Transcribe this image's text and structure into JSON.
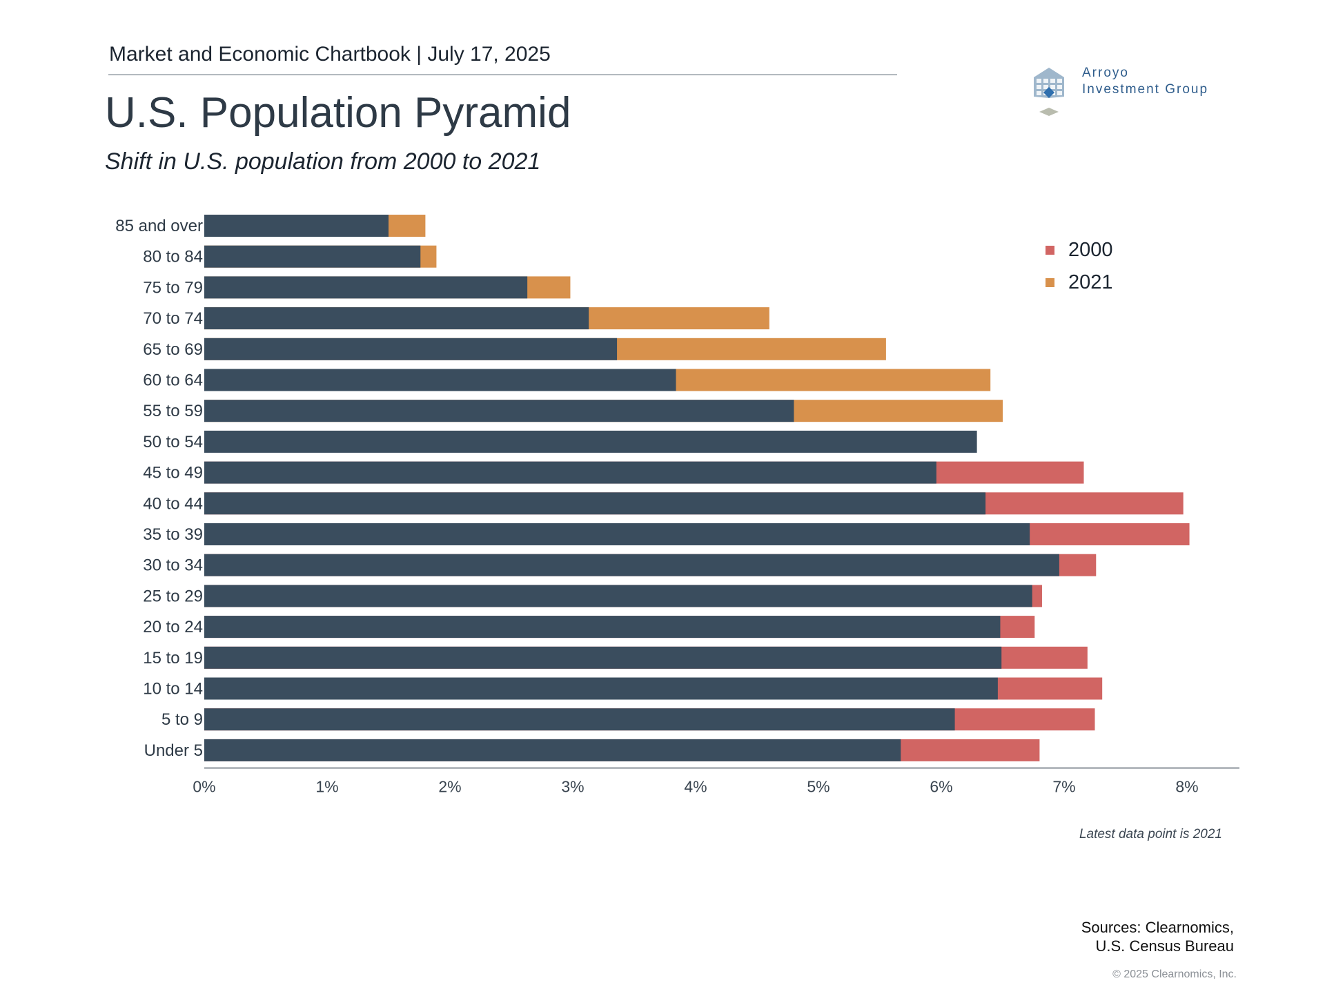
{
  "header": {
    "kicker": "Market and Economic Chartbook | July 17, 2025",
    "title": "U.S. Population Pyramid",
    "subtitle": "Shift in U.S. population from 2000 to 2021"
  },
  "logo": {
    "line1": "Arroyo",
    "line2": "Investment Group",
    "icon": "building-grid-icon",
    "color": "#2f5d8c"
  },
  "chart_data": {
    "type": "bar",
    "orientation": "horizontal",
    "categories": [
      "85 and over",
      "80 to 84",
      "75 to 79",
      "70 to 74",
      "65 to 69",
      "60 to 64",
      "55 to 59",
      "50 to 54",
      "45 to 49",
      "40 to 44",
      "35 to 39",
      "30 to 34",
      "25 to 29",
      "20 to 24",
      "15 to 19",
      "10 to 14",
      "5 to 9",
      "Under 5"
    ],
    "series": [
      {
        "name": "2000",
        "color": "#d16563",
        "values": [
          1.5,
          1.76,
          2.63,
          3.13,
          3.36,
          3.84,
          4.8,
          6.29,
          7.16,
          7.97,
          8.02,
          7.26,
          6.82,
          6.76,
          7.19,
          7.31,
          7.25,
          6.8
        ]
      },
      {
        "name": "2021",
        "color": "#d8914c",
        "values": [
          1.8,
          1.89,
          2.98,
          4.6,
          5.55,
          6.4,
          6.5,
          6.29,
          5.96,
          6.36,
          6.72,
          6.96,
          6.74,
          6.48,
          6.49,
          6.46,
          6.11,
          5.67
        ]
      }
    ],
    "overlap_color": "#3a4d5e",
    "xlim": [
      0,
      8.5
    ],
    "xticks": [
      "0%",
      "1%",
      "2%",
      "3%",
      "4%",
      "5%",
      "6%",
      "7%",
      "8%"
    ],
    "legend_position": "top-right",
    "grid": false
  },
  "footer": {
    "note": "Latest data point is 2021",
    "sources_line1": "Sources: Clearnomics,",
    "sources_line2": "U.S. Census Bureau",
    "copyright": "© 2025 Clearnomics, Inc."
  }
}
